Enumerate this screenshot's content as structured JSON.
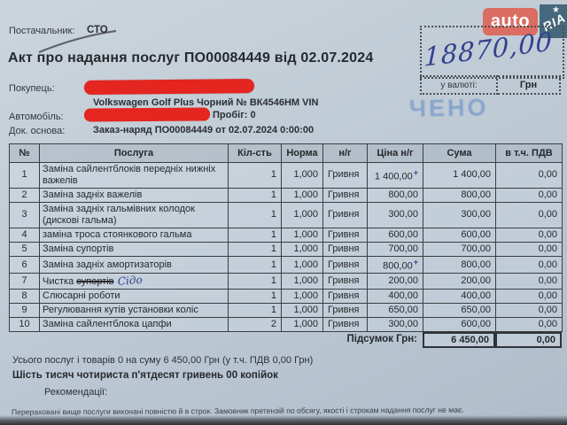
{
  "logo": {
    "auto": "auto",
    "ria": "RIA"
  },
  "amount": {
    "handwritten_value": "18870,00",
    "currency_label": "у валюті:",
    "currency_value": "Грн"
  },
  "header": {
    "supplier_label": "Постачальник:",
    "supplier_value": "СТО",
    "title": "Акт про надання послуг ПО00084449 від 02.07.2024",
    "buyer_label": "Покупець:",
    "vehicle_line": "Volkswagen Golf Plus Чорний № ВК4546НМ VIN",
    "car_label": "Автомобіль:",
    "mileage": "Пробіг: 0",
    "doc_basis_label": "Док. основа:",
    "doc_basis_value": "Заказ-наряд ПО00084449 от 02.07.2024 0:00:00",
    "stamp": "ЧЕНО"
  },
  "table": {
    "columns": [
      "№",
      "Послуга",
      "Кіл-сть",
      "Норма",
      "н/г",
      "Ціна н/г",
      "Сума",
      "в т.ч. ПДВ"
    ],
    "rows": [
      {
        "n": "1",
        "service": "Заміна сайлентблоків передніх нижніх важелів",
        "qty": "1",
        "norm": "1,000",
        "unit": "Гривня",
        "price": "1 400,00",
        "sum": "1 400,00",
        "vat": "0,00",
        "pen_mark": "+"
      },
      {
        "n": "2",
        "service": "Заміна задніх важелів",
        "qty": "1",
        "norm": "1,000",
        "unit": "Гривня",
        "price": "800,00",
        "sum": "800,00",
        "vat": "0,00"
      },
      {
        "n": "3",
        "service": "Заміна задніх гальмівних колодок (дискові гальма)",
        "qty": "1",
        "norm": "1,000",
        "unit": "Гривня",
        "price": "300,00",
        "sum": "300,00",
        "vat": "0,00"
      },
      {
        "n": "4",
        "service": "заміна троса стоянкового гальма",
        "qty": "1",
        "norm": "1,000",
        "unit": "Гривня",
        "price": "600,00",
        "sum": "600,00",
        "vat": "0,00"
      },
      {
        "n": "5",
        "service": "Заміна супортів",
        "qty": "1",
        "norm": "1,000",
        "unit": "Гривня",
        "price": "700,00",
        "sum": "700,00",
        "vat": "0,00"
      },
      {
        "n": "6",
        "service": "Заміна задніх амортизаторів",
        "qty": "1",
        "norm": "1,000",
        "unit": "Гривня",
        "price": "800,00",
        "sum": "800,00",
        "vat": "0,00",
        "pen_mark": "+"
      },
      {
        "n": "7",
        "service": "Чистка супортів Сідо",
        "service_pre": "Чистка ",
        "service_strike": "супортів",
        "service_hand": "Сідо",
        "qty": "1",
        "norm": "1,000",
        "unit": "Гривня",
        "price": "200,00",
        "sum": "200,00",
        "vat": "0,00"
      },
      {
        "n": "8",
        "service": "Слюсарні роботи",
        "qty": "1",
        "norm": "1,000",
        "unit": "Гривня",
        "price": "400,00",
        "sum": "400,00",
        "vat": "0,00"
      },
      {
        "n": "9",
        "service": "Регулювання кутів установки коліс",
        "qty": "1",
        "norm": "1,000",
        "unit": "Гривня",
        "price": "650,00",
        "sum": "650,00",
        "vat": "0,00"
      },
      {
        "n": "10",
        "service": "Заміна сайлентблока цапфи",
        "qty": "2",
        "norm": "1,000",
        "unit": "Гривня",
        "price": "300,00",
        "sum": "600,00",
        "vat": "0,00"
      }
    ],
    "total_label": "Підсумок Грн:",
    "total_sum": "6 450,00",
    "total_vat": "0,00"
  },
  "footer": {
    "summary_line": "Усього послуг і товарів 0 на суму 6 450,00 Грн (у т.ч. ПДВ 0,00 Грн)",
    "amount_in_words": "Шість тисяч чотириста п'ятдесят гривень 00 копійок",
    "recommendations_label": "Рекомендації:",
    "fine_print": "Перераховані вище послуги виконані повністю й в строк. Замовник претензій по обсягу, якості і строкам надання послуг не має."
  },
  "colors": {
    "redaction": "#e52520",
    "pen_ink": "#32418f",
    "stamp_blue": "#7b9bca",
    "logo_auto_bg": "#db6d62",
    "logo_ria_bg": "#45687c"
  }
}
